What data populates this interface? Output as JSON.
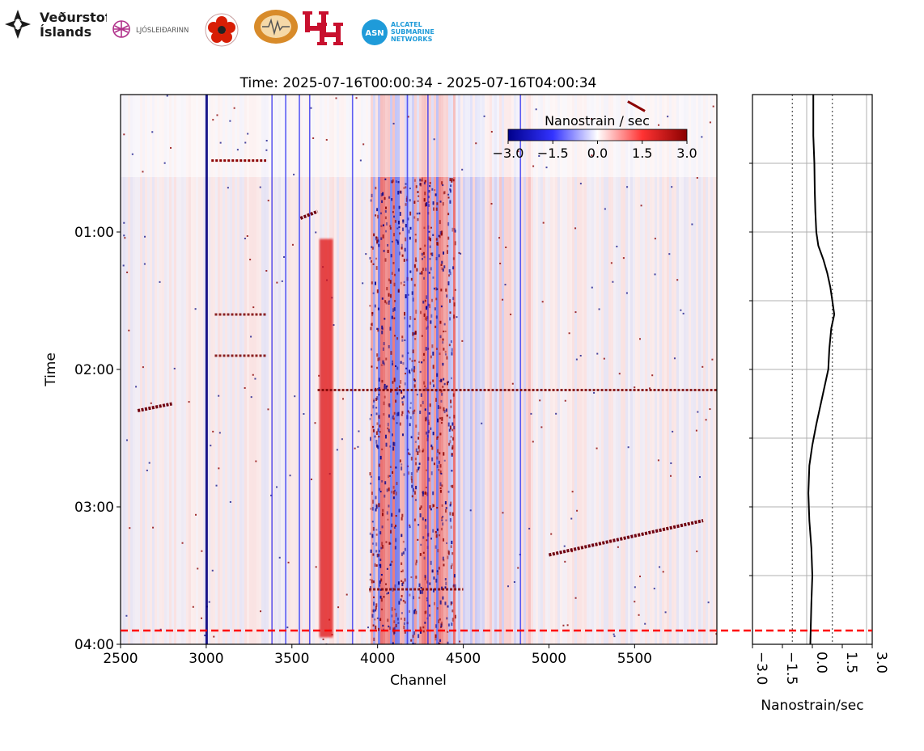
{
  "logos": {
    "vedurstofa_line1": "Veðurstofa",
    "vedurstofa_line2": "Íslands",
    "ljosleidarinn": "LJÓSLEIÐARINN",
    "alcatel_abbrev": "ASN",
    "alcatel_line1": "ALCATEL",
    "alcatel_line2": "SUBMARINE",
    "alcatel_line3": "NETWORKS"
  },
  "chart_data": [
    {
      "type": "heatmap",
      "title": "Time: 2025-07-16T00:00:34 - 2025-07-16T04:00:34",
      "xlabel": "Channel",
      "ylabel": "Time",
      "xlim": [
        2500,
        5980
      ],
      "ylim_hours": [
        0.0,
        4.0
      ],
      "xticks": [
        2500,
        3000,
        3500,
        4000,
        4500,
        5000,
        5500
      ],
      "xtick_labels": [
        "2500",
        "3000",
        "3500",
        "4000",
        "4500",
        "5000",
        "5500"
      ],
      "yticks_hours": [
        1,
        2,
        3,
        4
      ],
      "ytick_labels": [
        "01:00",
        "02:00",
        "03:00",
        "04:00"
      ],
      "colorbar": {
        "label": "Nanostrain / sec",
        "range": [
          -3.0,
          3.0
        ],
        "ticks": [
          -3.0,
          -1.5,
          0.0,
          1.5,
          3.0
        ],
        "tick_labels": [
          "−3.0",
          "−1.5",
          "0.0",
          "1.5",
          "3.0"
        ],
        "colors": [
          "#00008b",
          "#3333ff",
          "#ffffff",
          "#ff3333",
          "#8b0000"
        ]
      },
      "marker_line": {
        "time_hours": 3.9,
        "color": "#ff0000",
        "style": "dashed"
      },
      "features": {
        "red_band_channels": [
          3660,
          3740
        ],
        "blue_columns": [
          3380,
          3460,
          3540,
          3600,
          3850,
          4170,
          4290,
          4830
        ],
        "noisy_region_channels": [
          3950,
          4450
        ],
        "noisy_region_hours": [
          0.6,
          4.0
        ],
        "horizontal_event_hours": [
          2.15,
          3.6,
          1.6,
          1.9
        ],
        "diagonal_events": [
          {
            "channels": [
              5000,
              5900
            ],
            "hours": [
              3.35,
              3.1
            ]
          },
          {
            "channels": [
              3550,
              3650
            ],
            "hours": [
              0.9,
              0.85
            ]
          },
          {
            "channels": [
              2600,
              2800
            ],
            "hours": [
              2.3,
              2.25
            ]
          }
        ]
      }
    },
    {
      "type": "line",
      "xlabel": "Nanostrain/sec",
      "xlim": [
        -3.0,
        3.0
      ],
      "xticks": [
        -3.0,
        -1.5,
        0.0,
        1.5,
        3.0
      ],
      "xtick_labels": [
        "−3.0",
        "−1.5",
        "0.0",
        "1.5",
        "3.0"
      ],
      "ylim_hours": [
        0.0,
        4.0
      ],
      "dotted_reference_lines": [
        -1.0,
        1.0
      ],
      "solid_reference_lines": [
        -1.5,
        1.5
      ],
      "series": [
        {
          "name": "mean",
          "color": "#000000",
          "x": [
            0.05,
            0.05,
            0.1,
            0.12,
            0.15,
            0.2,
            0.3,
            0.55,
            0.75,
            0.9,
            1.0,
            1.1,
            0.95,
            0.85,
            0.8,
            0.5,
            0.2,
            0.0,
            -0.15,
            -0.2,
            -0.15,
            -0.05,
            0.0,
            -0.05,
            -0.1
          ],
          "hours": [
            0.0,
            0.3,
            0.5,
            0.7,
            0.85,
            1.0,
            1.1,
            1.2,
            1.3,
            1.4,
            1.5,
            1.6,
            1.7,
            1.85,
            2.0,
            2.2,
            2.4,
            2.55,
            2.7,
            2.9,
            3.1,
            3.3,
            3.5,
            3.7,
            4.0
          ]
        }
      ]
    }
  ]
}
